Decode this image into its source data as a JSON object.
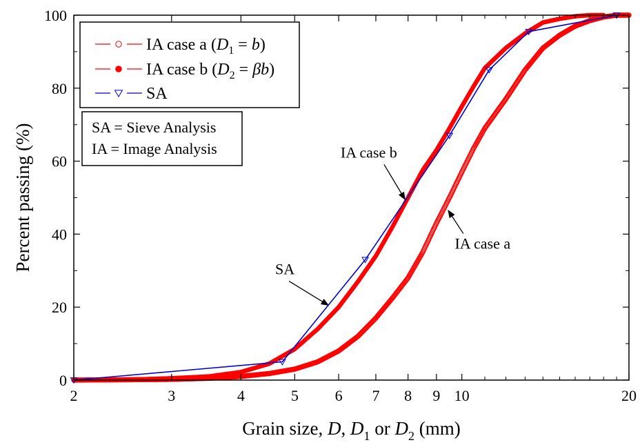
{
  "chart_data": {
    "type": "line",
    "xscale": "log",
    "xlim": [
      2,
      20
    ],
    "ylim": [
      0,
      100
    ],
    "xticks": [
      2,
      3,
      4,
      5,
      6,
      7,
      8,
      9,
      10,
      20
    ],
    "xtick_labels": [
      "2",
      "3",
      "4",
      "5",
      "6",
      "7",
      "8",
      "9",
      "10",
      "20"
    ],
    "yticks": [
      0,
      20,
      40,
      60,
      80,
      100
    ],
    "ytick_labels": [
      "0",
      "20",
      "40",
      "60",
      "80",
      "100"
    ],
    "xlabel": {
      "prefix": "Grain size, ",
      "d": "D",
      "sep1": ", ",
      "d1": "D",
      "d1_sub": "1",
      "or": " or ",
      "d2": "D",
      "d2_sub": "2",
      "unit": " (mm)"
    },
    "ylabel": "Percent passing (%)",
    "legend_position": "top-left",
    "series": [
      {
        "key": "ia_a",
        "legend": {
          "text": "IA case a (",
          "var": "D",
          "sub": "1",
          "eq": " = ",
          "rhs": "b",
          "close": ")"
        },
        "color": "#ff0000",
        "marker": "open-circle",
        "points": [
          [
            2.0,
            0
          ],
          [
            2.5,
            0.1
          ],
          [
            3.0,
            0.2
          ],
          [
            3.5,
            0.5
          ],
          [
            4.0,
            1.0
          ],
          [
            4.5,
            1.8
          ],
          [
            5.0,
            3.0
          ],
          [
            5.5,
            5.0
          ],
          [
            6.0,
            8.0
          ],
          [
            6.5,
            12.0
          ],
          [
            7.0,
            17.0
          ],
          [
            7.5,
            22.5
          ],
          [
            8.0,
            28.0
          ],
          [
            8.5,
            35.0
          ],
          [
            9.0,
            43.0
          ],
          [
            9.5,
            50.0
          ],
          [
            10.0,
            57.0
          ],
          [
            10.5,
            63.5
          ],
          [
            11.0,
            69.0
          ],
          [
            12.0,
            77.0
          ],
          [
            13.0,
            85.0
          ],
          [
            14.0,
            91.0
          ],
          [
            15.0,
            94.5
          ],
          [
            16.0,
            97.0
          ],
          [
            17.0,
            98.5
          ],
          [
            18.0,
            99.5
          ],
          [
            19.0,
            100
          ],
          [
            20.0,
            100
          ]
        ]
      },
      {
        "key": "ia_b",
        "legend": {
          "text": "IA case b (",
          "var": "D",
          "sub": "2",
          "eq": " = ",
          "rhs": "βb",
          "close": ")"
        },
        "color": "#ff0000",
        "marker": "filled-circle",
        "points": [
          [
            2.0,
            0
          ],
          [
            2.5,
            0.1
          ],
          [
            3.0,
            0.5
          ],
          [
            3.5,
            1.0
          ],
          [
            4.0,
            2.2
          ],
          [
            4.5,
            4.5
          ],
          [
            5.0,
            8.5
          ],
          [
            5.5,
            14.0
          ],
          [
            6.0,
            20.0
          ],
          [
            6.5,
            27.0
          ],
          [
            7.0,
            34.0
          ],
          [
            7.5,
            42.0
          ],
          [
            8.0,
            50.0
          ],
          [
            8.5,
            57.5
          ],
          [
            9.0,
            63.0
          ],
          [
            9.5,
            69.0
          ],
          [
            10.0,
            75.0
          ],
          [
            10.5,
            80.5
          ],
          [
            11.0,
            85.5
          ],
          [
            12.0,
            91.0
          ],
          [
            13.0,
            95.0
          ],
          [
            14.0,
            98.0
          ],
          [
            15.0,
            99.0
          ],
          [
            16.0,
            99.7
          ],
          [
            17.0,
            100
          ],
          [
            18.0,
            100
          ]
        ]
      },
      {
        "key": "sa",
        "legend": {
          "text": "SA"
        },
        "color": "#0000cc",
        "marker": "open-triangle-down",
        "points": [
          [
            2.0,
            0
          ],
          [
            4.75,
            5.0
          ],
          [
            6.7,
            33.0
          ],
          [
            9.5,
            67.0
          ],
          [
            11.2,
            85.0
          ],
          [
            13.2,
            95.5
          ],
          [
            19.0,
            100
          ]
        ]
      }
    ],
    "note_box": [
      "SA = Sieve Analysis",
      "IA = Image Analysis"
    ],
    "annotations": [
      {
        "text": "IA case b",
        "text_at": [
          6.8,
          61
        ],
        "arrow_to": [
          7.9,
          49.5
        ]
      },
      {
        "text": "IA case a",
        "text_at": [
          10.9,
          36
        ],
        "arrow_to": [
          9.45,
          46.5
        ]
      },
      {
        "text": "SA",
        "text_at": [
          4.8,
          29
        ],
        "arrow_to": [
          5.75,
          20.5
        ]
      }
    ]
  }
}
